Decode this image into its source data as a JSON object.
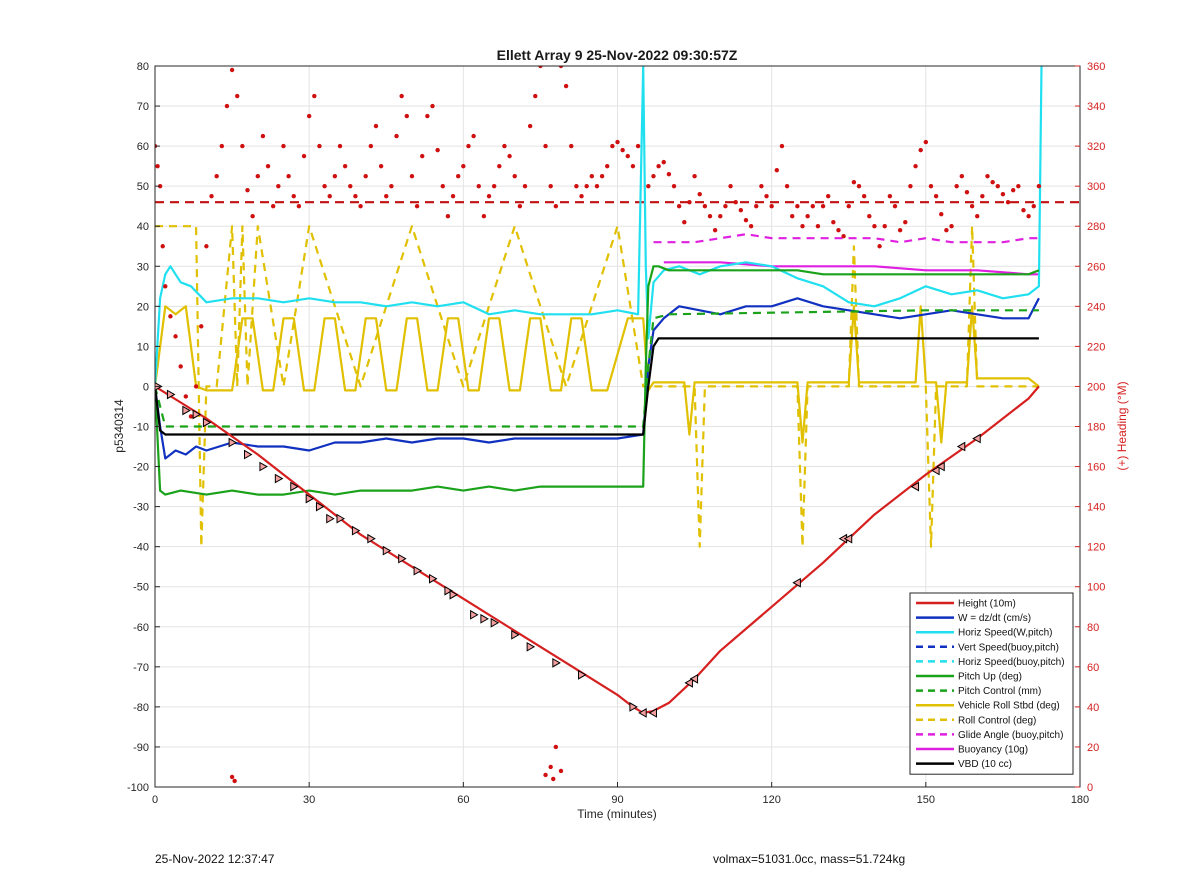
{
  "chart_data": {
    "type": "line",
    "title": "Ellett Array 9 25-Nov-2022 09:30:57Z",
    "xlabel": "Time (minutes)",
    "ylabel": "p5340314",
    "ylabel_right": "(+) Heading (°M)",
    "xlim": [
      0,
      180
    ],
    "ylim": [
      -100,
      80
    ],
    "ylim_right": [
      0,
      360
    ],
    "x_ticks": [
      "0",
      "30",
      "60",
      "90",
      "120",
      "150",
      "180"
    ],
    "y_ticks": [
      "-100",
      "-90",
      "-80",
      "-70",
      "-60",
      "-50",
      "-40",
      "-30",
      "-20",
      "-10",
      "0",
      "10",
      "20",
      "30",
      "40",
      "50",
      "60",
      "70",
      "80"
    ],
    "y_ticks_right": [
      "0",
      "20",
      "40",
      "60",
      "80",
      "100",
      "120",
      "140",
      "160",
      "180",
      "200",
      "220",
      "240",
      "260",
      "280",
      "300",
      "320",
      "340",
      "360"
    ],
    "grid": true,
    "legend_position": "bottom-right",
    "series": [
      {
        "name": "Height (10m)",
        "color": "#d62020",
        "style": "solid",
        "x": [
          0,
          5,
          10,
          20,
          30,
          40,
          50,
          60,
          70,
          80,
          90,
          93,
          95,
          97,
          100,
          105,
          110,
          120,
          130,
          140,
          150,
          160,
          170,
          172
        ],
        "y": [
          0,
          -4,
          -8,
          -17,
          -27,
          -37,
          -45,
          -53,
          -61,
          -69,
          -77,
          -80,
          -81.5,
          -81,
          -79,
          -73,
          -66,
          -55,
          -44,
          -32,
          -22,
          -13,
          -3,
          0
        ]
      },
      {
        "name": "W = dz/dt (cm/s)",
        "color": "#1030c0",
        "style": "solid",
        "x": [
          0,
          1,
          2,
          4,
          6,
          8,
          10,
          15,
          20,
          25,
          30,
          35,
          40,
          45,
          50,
          55,
          60,
          65,
          70,
          75,
          80,
          85,
          90,
          95,
          96,
          97,
          99,
          102,
          106,
          110,
          115,
          120,
          125,
          130,
          135,
          140,
          145,
          150,
          155,
          160,
          165,
          170,
          172
        ],
        "y": [
          0,
          -10,
          -18,
          -16,
          -17,
          -15,
          -16,
          -14,
          -15,
          -15,
          -16,
          -14,
          -14,
          -13,
          -14,
          -13,
          -13,
          -14,
          -13,
          -13,
          -13,
          -13,
          -13,
          -12,
          5,
          14,
          17,
          20,
          19,
          18,
          20,
          20,
          22,
          20,
          19,
          18,
          17,
          18,
          19,
          18,
          17,
          17,
          22
        ]
      },
      {
        "name": "Horiz Speed(W,pitch)",
        "color": "#20e0f0",
        "style": "solid",
        "x": [
          0,
          1,
          2,
          3,
          5,
          7,
          10,
          15,
          20,
          25,
          30,
          35,
          40,
          45,
          50,
          55,
          60,
          65,
          70,
          75,
          80,
          85,
          90,
          94,
          95,
          95.5,
          96,
          97,
          99,
          102,
          106,
          110,
          115,
          120,
          125,
          130,
          135,
          140,
          145,
          150,
          155,
          160,
          165,
          170,
          172,
          172.5
        ],
        "y": [
          0,
          22,
          28,
          30,
          26,
          25,
          21,
          22,
          22,
          21,
          22,
          21,
          21,
          20,
          21,
          20,
          21,
          18,
          19,
          18,
          18,
          18,
          19,
          18,
          80,
          30,
          12,
          26,
          29,
          30,
          28,
          30,
          31,
          30,
          27,
          25,
          21,
          20,
          22,
          25,
          23,
          24,
          22,
          23,
          25,
          80
        ]
      },
      {
        "name": "Vert Speed(buoy,pitch)",
        "color": "#1030c0",
        "style": "dashed",
        "x": [],
        "y": []
      },
      {
        "name": "Horiz Speed(buoy,pitch)",
        "color": "#20e0f0",
        "style": "dashed",
        "x": [],
        "y": []
      },
      {
        "name": "Pitch Up (deg)",
        "color": "#1aa21a",
        "style": "solid",
        "x": [
          0,
          1,
          2,
          5,
          10,
          15,
          20,
          25,
          30,
          35,
          40,
          45,
          50,
          55,
          60,
          65,
          70,
          75,
          80,
          85,
          90,
          95,
          95.5,
          96,
          97,
          98,
          100,
          105,
          110,
          115,
          120,
          125,
          130,
          135,
          140,
          145,
          150,
          155,
          160,
          165,
          170,
          172
        ],
        "y": [
          0,
          -26,
          -27,
          -26,
          -27,
          -26,
          -27,
          -27,
          -26,
          -27,
          -26,
          -26,
          -26,
          -25,
          -26,
          -25,
          -26,
          -25,
          -25,
          -25,
          -25,
          -25,
          5,
          25,
          30,
          30,
          29,
          29,
          29,
          29,
          29,
          29,
          28,
          28,
          28,
          28,
          28,
          28,
          28,
          28,
          28,
          29
        ]
      },
      {
        "name": "Pitch Control (mm)",
        "color": "#1aa21a",
        "style": "dashed",
        "x": [
          0,
          2,
          10,
          40,
          95,
          96,
          97,
          100,
          150,
          172
        ],
        "y": [
          0,
          -10,
          -10,
          -10,
          -10,
          5,
          17,
          18,
          19,
          19
        ]
      },
      {
        "name": "Vehicle Roll Stbd (deg)",
        "color": "#e0c000",
        "style": "solid",
        "x": [
          0,
          2,
          4,
          6,
          8,
          10,
          15,
          17,
          19,
          21,
          23,
          25,
          27,
          29,
          31,
          33,
          35,
          37,
          39,
          41,
          43,
          45,
          47,
          49,
          51,
          53,
          55,
          57,
          59,
          61,
          63,
          65,
          67,
          69,
          71,
          73,
          75,
          77,
          79,
          81,
          83,
          85,
          88,
          92,
          95,
          96,
          97,
          100,
          103,
          104,
          105,
          110,
          120,
          125,
          126,
          127,
          130,
          135,
          136,
          137,
          140,
          145,
          148,
          149,
          150,
          152,
          153,
          154,
          158,
          159,
          160,
          165,
          170,
          172
        ],
        "y": [
          0,
          20,
          18,
          20,
          0,
          -1,
          -1,
          17,
          17,
          -1,
          -1,
          17,
          17,
          -1,
          -1,
          17,
          17,
          -1,
          -1,
          17,
          17,
          -1,
          -1,
          17,
          17,
          -1,
          -1,
          17,
          17,
          -1,
          -1,
          17,
          17,
          -1,
          -1,
          17,
          17,
          -1,
          -1,
          17,
          17,
          -1,
          -1,
          17,
          17,
          -1,
          1,
          1,
          1,
          -12,
          1,
          1,
          1,
          1,
          -14,
          1,
          1,
          1,
          20,
          1,
          1,
          1,
          1,
          20,
          1,
          1,
          -14,
          1,
          1,
          20,
          2,
          2,
          2,
          0
        ]
      },
      {
        "name": "Roll Control (deg)",
        "color": "#e0c000",
        "style": "dashed",
        "x": [
          0,
          8,
          9,
          10,
          12,
          15,
          16,
          17,
          18,
          20,
          25,
          30,
          40,
          50,
          60,
          70,
          80,
          90,
          95,
          97,
          100,
          105,
          106,
          107,
          125,
          126,
          127,
          135,
          136,
          137,
          150,
          151,
          152,
          158,
          159,
          160,
          172
        ],
        "y": [
          40,
          40,
          -40,
          0,
          0,
          40,
          0,
          40,
          0,
          40,
          0,
          40,
          0,
          40,
          0,
          40,
          0,
          40,
          0,
          0,
          0,
          0,
          -40,
          0,
          0,
          -40,
          0,
          0,
          35,
          0,
          0,
          -40,
          0,
          0,
          40,
          0,
          0
        ]
      },
      {
        "name": "Glide Angle (buoy,pitch)",
        "color": "#e020e0",
        "style": "dashed",
        "x": [
          97,
          100,
          105,
          110,
          115,
          120,
          125,
          130,
          135,
          140,
          145,
          150,
          155,
          160,
          165,
          170,
          172
        ],
        "y": [
          36,
          36,
          36,
          37,
          38,
          37,
          37,
          37,
          37,
          37,
          36,
          37,
          36,
          36,
          36,
          37,
          37
        ]
      },
      {
        "name": "Buoyancy (10g)",
        "color": "#e020e0",
        "style": "solid",
        "x": [
          99,
          110,
          120,
          130,
          140,
          150,
          160,
          170,
          172
        ],
        "y": [
          31,
          31,
          30,
          30,
          30,
          29,
          29,
          28,
          28
        ]
      },
      {
        "name": "VBD (10 cc)",
        "color": "#000000",
        "style": "solid",
        "x": [
          0,
          1,
          2,
          95,
          96,
          97,
          98,
          100,
          172
        ],
        "y": [
          0,
          -11,
          -12,
          -12,
          0,
          10,
          12,
          12,
          12
        ]
      }
    ],
    "heading_target": {
      "color": "#c01010",
      "style": "dashed",
      "value": 292,
      "axis": "right"
    },
    "heading_points": {
      "color": "#d01010",
      "axis": "right",
      "x": [
        0,
        0.5,
        1,
        1.5,
        2,
        3,
        4,
        5,
        6,
        7,
        8,
        9,
        10,
        11,
        12,
        13,
        14,
        15,
        16,
        17,
        18,
        19,
        20,
        21,
        22,
        23,
        24,
        25,
        26,
        27,
        28,
        29,
        30,
        31,
        32,
        33,
        34,
        35,
        36,
        37,
        38,
        39,
        40,
        41,
        42,
        43,
        44,
        45,
        46,
        47,
        48,
        49,
        50,
        51,
        52,
        53,
        54,
        55,
        56,
        57,
        58,
        59,
        60,
        61,
        62,
        63,
        64,
        65,
        66,
        67,
        68,
        69,
        70,
        71,
        72,
        73,
        74,
        75,
        76,
        77,
        78,
        79,
        80,
        81,
        82,
        83,
        84,
        85,
        86,
        87,
        88,
        89,
        90,
        91,
        92,
        93,
        94,
        96,
        97,
        98,
        99,
        100,
        101,
        102,
        103,
        104,
        105,
        106,
        107,
        108,
        109,
        110,
        111,
        112,
        113,
        114,
        115,
        116,
        117,
        118,
        119,
        120,
        121,
        122,
        123,
        124,
        125,
        126,
        127,
        128,
        129,
        130,
        131,
        132,
        133,
        134,
        135,
        136,
        137,
        138,
        139,
        140,
        141,
        142,
        143,
        144,
        145,
        146,
        147,
        148,
        149,
        150,
        151,
        152,
        153,
        154,
        155,
        156,
        157,
        158,
        159,
        160,
        161,
        162,
        163,
        164,
        165,
        166,
        167,
        168,
        169,
        170,
        171,
        172,
        15,
        15.5,
        76,
        77,
        78,
        79,
        77.5
      ],
      "y": [
        320,
        310,
        300,
        270,
        250,
        235,
        225,
        210,
        195,
        185,
        200,
        230,
        270,
        295,
        305,
        320,
        340,
        358,
        345,
        320,
        298,
        285,
        305,
        325,
        310,
        290,
        300,
        320,
        305,
        295,
        290,
        315,
        335,
        345,
        320,
        300,
        295,
        305,
        320,
        310,
        300,
        295,
        290,
        305,
        320,
        330,
        310,
        295,
        300,
        325,
        345,
        335,
        305,
        290,
        315,
        335,
        340,
        318,
        300,
        285,
        295,
        305,
        310,
        320,
        325,
        300,
        285,
        295,
        300,
        310,
        320,
        315,
        305,
        290,
        300,
        330,
        345,
        360,
        320,
        300,
        290,
        360,
        350,
        320,
        300,
        295,
        300,
        305,
        300,
        305,
        310,
        320,
        322,
        318,
        315,
        310,
        320,
        300,
        305,
        310,
        312,
        306,
        300,
        290,
        282,
        292,
        305,
        296,
        290,
        285,
        278,
        285,
        290,
        300,
        292,
        288,
        283,
        280,
        290,
        300,
        295,
        290,
        308,
        320,
        300,
        285,
        290,
        280,
        285,
        290,
        280,
        290,
        295,
        282,
        278,
        275,
        290,
        302,
        300,
        295,
        285,
        280,
        270,
        280,
        295,
        290,
        278,
        282,
        300,
        310,
        318,
        322,
        300,
        295,
        286,
        278,
        280,
        300,
        305,
        297,
        290,
        285,
        295,
        305,
        302,
        300,
        296,
        292,
        298,
        300,
        288,
        285,
        290,
        300,
        5,
        3,
        6,
        10,
        20,
        8,
        4
      ]
    },
    "markers": {
      "description_axis": "left",
      "x": [
        0.5,
        3,
        6,
        8,
        10,
        15,
        18,
        21,
        24,
        27,
        30,
        32,
        34,
        36,
        39,
        42,
        45,
        48,
        51,
        54,
        57,
        58,
        62,
        64,
        66,
        70,
        73,
        78,
        83,
        93,
        95,
        97,
        104,
        105,
        125,
        134,
        135,
        148,
        152,
        153,
        157,
        160
      ],
      "y": [
        0,
        -2,
        -6,
        -7,
        -9,
        -14,
        -17,
        -20,
        -23,
        -25,
        -28,
        -30,
        -33,
        -33,
        -36,
        -38,
        -41,
        -43,
        -46,
        -48,
        -51,
        -52,
        -57,
        -58,
        -59,
        -62,
        -65,
        -69,
        -72,
        -80,
        -81.5,
        -81.5,
        -74,
        -73,
        -49,
        -38,
        -38,
        -25,
        -21,
        -20,
        -15,
        -13
      ]
    }
  },
  "footer": {
    "left": "25-Nov-2022 12:37:47",
    "right": "volmax=51031.0cc, mass=51.724kg"
  }
}
